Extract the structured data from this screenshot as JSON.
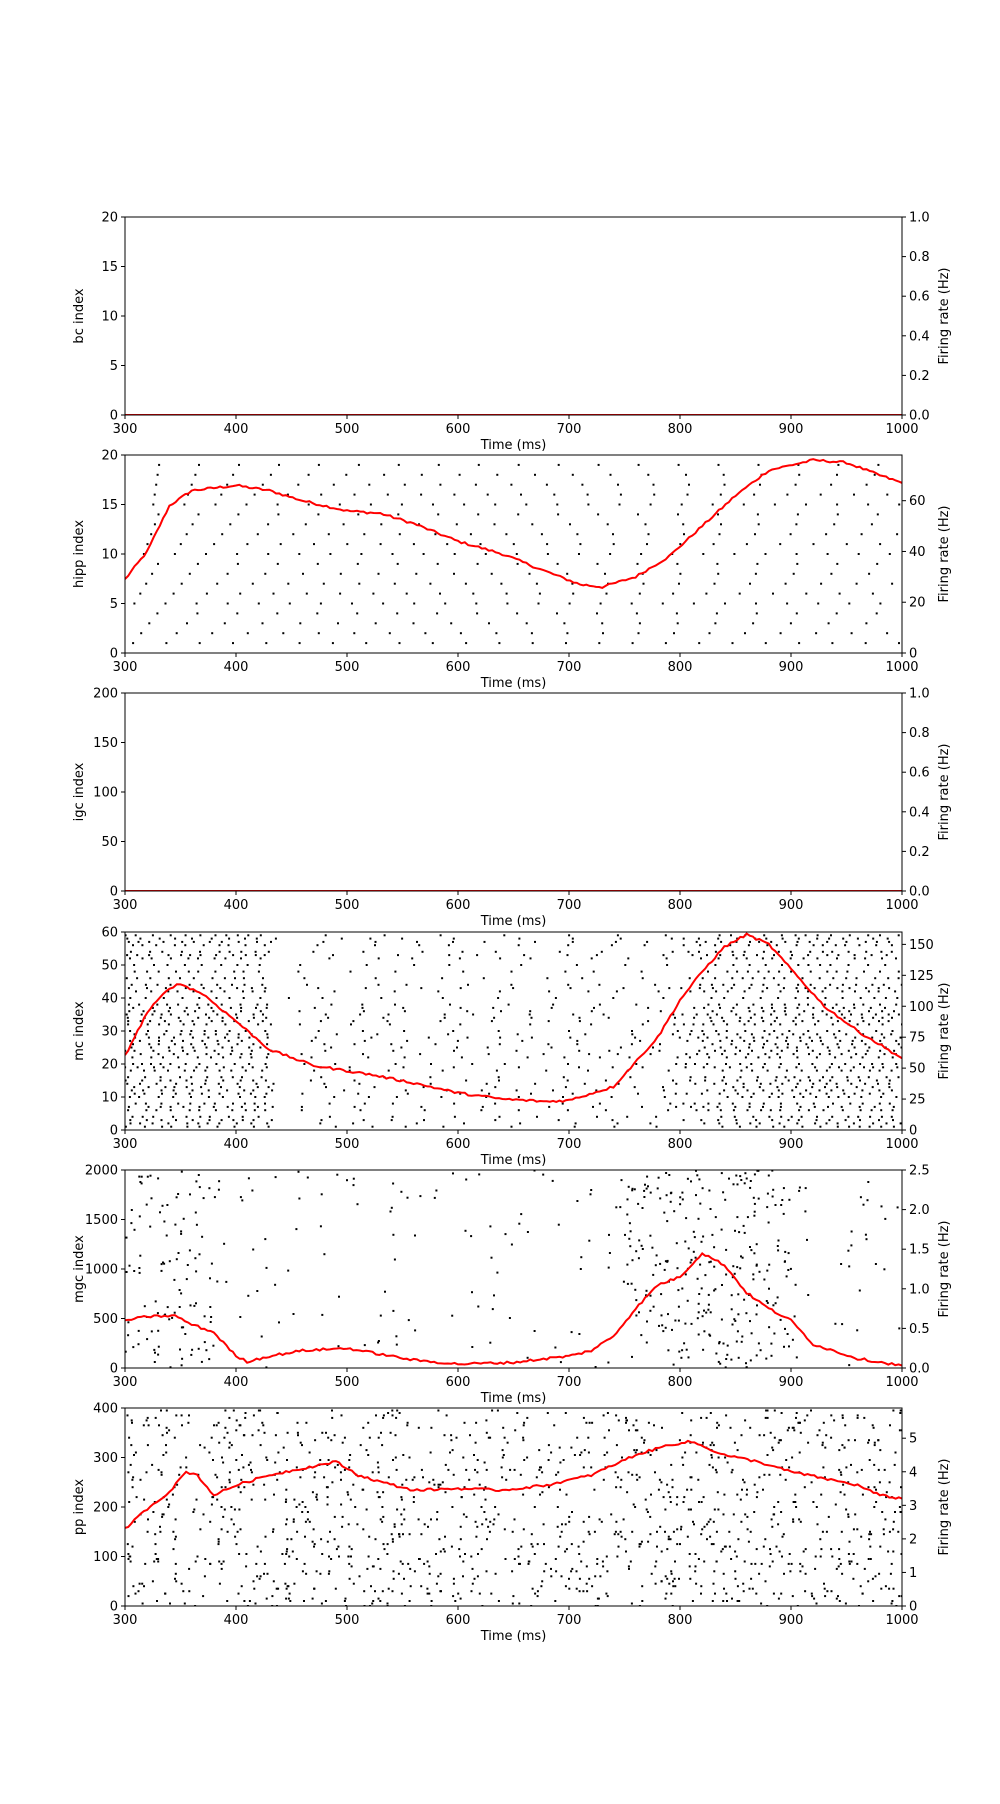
{
  "chart_data": [
    {
      "type": "scatter",
      "xlabel": "Time (ms)",
      "ylabel": "bc index",
      "y2label": "Firing rate (Hz)",
      "xlim": [
        300,
        1000
      ],
      "ylim": [
        0,
        20
      ],
      "y2lim": [
        0,
        1
      ],
      "xticks": [
        300,
        400,
        500,
        600,
        700,
        800,
        900,
        1000
      ],
      "yticks": [
        0,
        5,
        10,
        15,
        20
      ],
      "y2ticks": [
        "0.0",
        "0.2",
        "0.4",
        "0.6",
        "0.8",
        "1.0"
      ],
      "spikes": "none",
      "spike_color": "#000000",
      "rate_color": "#ff0000",
      "rate": {
        "x": [
          300,
          1000
        ],
        "y": [
          0,
          0
        ]
      }
    },
    {
      "type": "scatter",
      "xlabel": "Time (ms)",
      "ylabel": "hipp index",
      "y2label": "Firing rate (Hz)",
      "xlim": [
        300,
        1000
      ],
      "ylim": [
        0,
        20
      ],
      "y2lim": [
        0,
        78
      ],
      "xticks": [
        300,
        400,
        500,
        600,
        700,
        800,
        900,
        1000
      ],
      "yticks": [
        0,
        5,
        10,
        15,
        20
      ],
      "y2ticks": [
        0,
        20,
        40,
        60
      ],
      "spikes": "periodic",
      "spike_rows": 20,
      "spike_color": "#000000",
      "rate_color": "#ff0000",
      "rate": {
        "x": [
          300,
          320,
          340,
          360,
          380,
          400,
          430,
          460,
          500,
          530,
          560,
          600,
          640,
          680,
          710,
          730,
          760,
          790,
          820,
          850,
          880,
          920,
          950,
          980,
          1000
        ],
        "y": [
          29,
          40,
          58,
          64,
          65,
          66,
          64,
          60,
          56,
          55,
          51,
          44,
          39,
          32,
          27,
          26,
          30,
          38,
          50,
          62,
          72,
          76,
          75,
          70,
          67
        ]
      }
    },
    {
      "type": "scatter",
      "xlabel": "Time (ms)",
      "ylabel": "igc index",
      "y2label": "Firing rate (Hz)",
      "xlim": [
        300,
        1000
      ],
      "ylim": [
        0,
        200
      ],
      "y2lim": [
        0,
        1
      ],
      "xticks": [
        300,
        400,
        500,
        600,
        700,
        800,
        900,
        1000
      ],
      "yticks": [
        0,
        50,
        100,
        150,
        200
      ],
      "y2ticks": [
        "0.0",
        "0.2",
        "0.4",
        "0.6",
        "0.8",
        "1.0"
      ],
      "spikes": "none",
      "spike_color": "#000000",
      "rate_color": "#ff0000",
      "rate": {
        "x": [
          300,
          1000
        ],
        "y": [
          0,
          0
        ]
      }
    },
    {
      "type": "scatter",
      "xlabel": "Time (ms)",
      "ylabel": "mc index",
      "y2label": "Firing rate (Hz)",
      "xlim": [
        300,
        1000
      ],
      "ylim": [
        0,
        60
      ],
      "y2lim": [
        0,
        160
      ],
      "xticks": [
        300,
        400,
        500,
        600,
        700,
        800,
        900,
        1000
      ],
      "yticks": [
        0,
        10,
        20,
        30,
        40,
        50,
        60
      ],
      "y2ticks": [
        0,
        25,
        50,
        75,
        100,
        125,
        150
      ],
      "spikes": "bursts",
      "spike_rows": 60,
      "spike_color": "#000000",
      "rate_color": "#ff0000",
      "rate": {
        "x": [
          300,
          320,
          340,
          350,
          370,
          400,
          430,
          470,
          520,
          560,
          600,
          640,
          680,
          700,
          740,
          780,
          800,
          820,
          840,
          860,
          880,
          900,
          930,
          960,
          1000
        ],
        "y": [
          60,
          95,
          115,
          118,
          110,
          88,
          65,
          52,
          45,
          38,
          30,
          25,
          23,
          24,
          35,
          75,
          105,
          128,
          148,
          158,
          150,
          130,
          100,
          80,
          58
        ]
      }
    },
    {
      "type": "scatter",
      "xlabel": "Time (ms)",
      "ylabel": "mgc index",
      "y2label": "Firing rate (Hz)",
      "xlim": [
        300,
        1000
      ],
      "ylim": [
        0,
        2000
      ],
      "y2lim": [
        0,
        2.5
      ],
      "xticks": [
        300,
        400,
        500,
        600,
        700,
        800,
        900,
        1000
      ],
      "yticks": [
        0,
        500,
        1000,
        1500,
        2000
      ],
      "y2ticks": [
        "0.0",
        "0.5",
        "1.0",
        "1.5",
        "2.0",
        "2.5"
      ],
      "spikes": "sparse",
      "spike_rows": 2000,
      "spike_color": "#000000",
      "rate_color": "#ff0000",
      "rate": {
        "x": [
          300,
          320,
          345,
          360,
          380,
          400,
          410,
          430,
          460,
          500,
          520,
          560,
          600,
          650,
          680,
          700,
          720,
          740,
          760,
          780,
          800,
          820,
          840,
          860,
          880,
          900,
          920,
          960,
          1000
        ],
        "y": [
          0.6,
          0.65,
          0.66,
          0.55,
          0.45,
          0.15,
          0.08,
          0.15,
          0.22,
          0.25,
          0.2,
          0.1,
          0.05,
          0.07,
          0.12,
          0.15,
          0.22,
          0.4,
          0.75,
          1.05,
          1.15,
          1.45,
          1.3,
          0.95,
          0.75,
          0.6,
          0.3,
          0.12,
          0.03
        ]
      }
    },
    {
      "type": "scatter",
      "xlabel": "Time (ms)",
      "ylabel": "pp index",
      "y2label": "Firing rate (Hz)",
      "xlim": [
        300,
        1000
      ],
      "ylim": [
        0,
        400
      ],
      "y2lim": [
        0,
        5.9
      ],
      "xticks": [
        300,
        400,
        500,
        600,
        700,
        800,
        900,
        1000
      ],
      "yticks": [
        0,
        100,
        200,
        300,
        400
      ],
      "y2ticks": [
        0,
        1,
        2,
        3,
        4,
        5
      ],
      "spikes": "random",
      "spike_rows": 400,
      "spike_color": "#000000",
      "rate_color": "#ff0000",
      "rate": {
        "x": [
          300,
          320,
          340,
          355,
          365,
          380,
          400,
          430,
          460,
          490,
          510,
          530,
          560,
          600,
          640,
          680,
          720,
          760,
          790,
          810,
          840,
          870,
          900,
          930,
          960,
          980,
          1000
        ],
        "y": [
          2.3,
          2.9,
          3.4,
          4.0,
          3.9,
          3.3,
          3.6,
          3.9,
          4.1,
          4.3,
          3.9,
          3.7,
          3.45,
          3.5,
          3.45,
          3.6,
          3.9,
          4.5,
          4.8,
          4.9,
          4.5,
          4.3,
          4.0,
          3.8,
          3.6,
          3.3,
          3.2
        ]
      }
    }
  ]
}
